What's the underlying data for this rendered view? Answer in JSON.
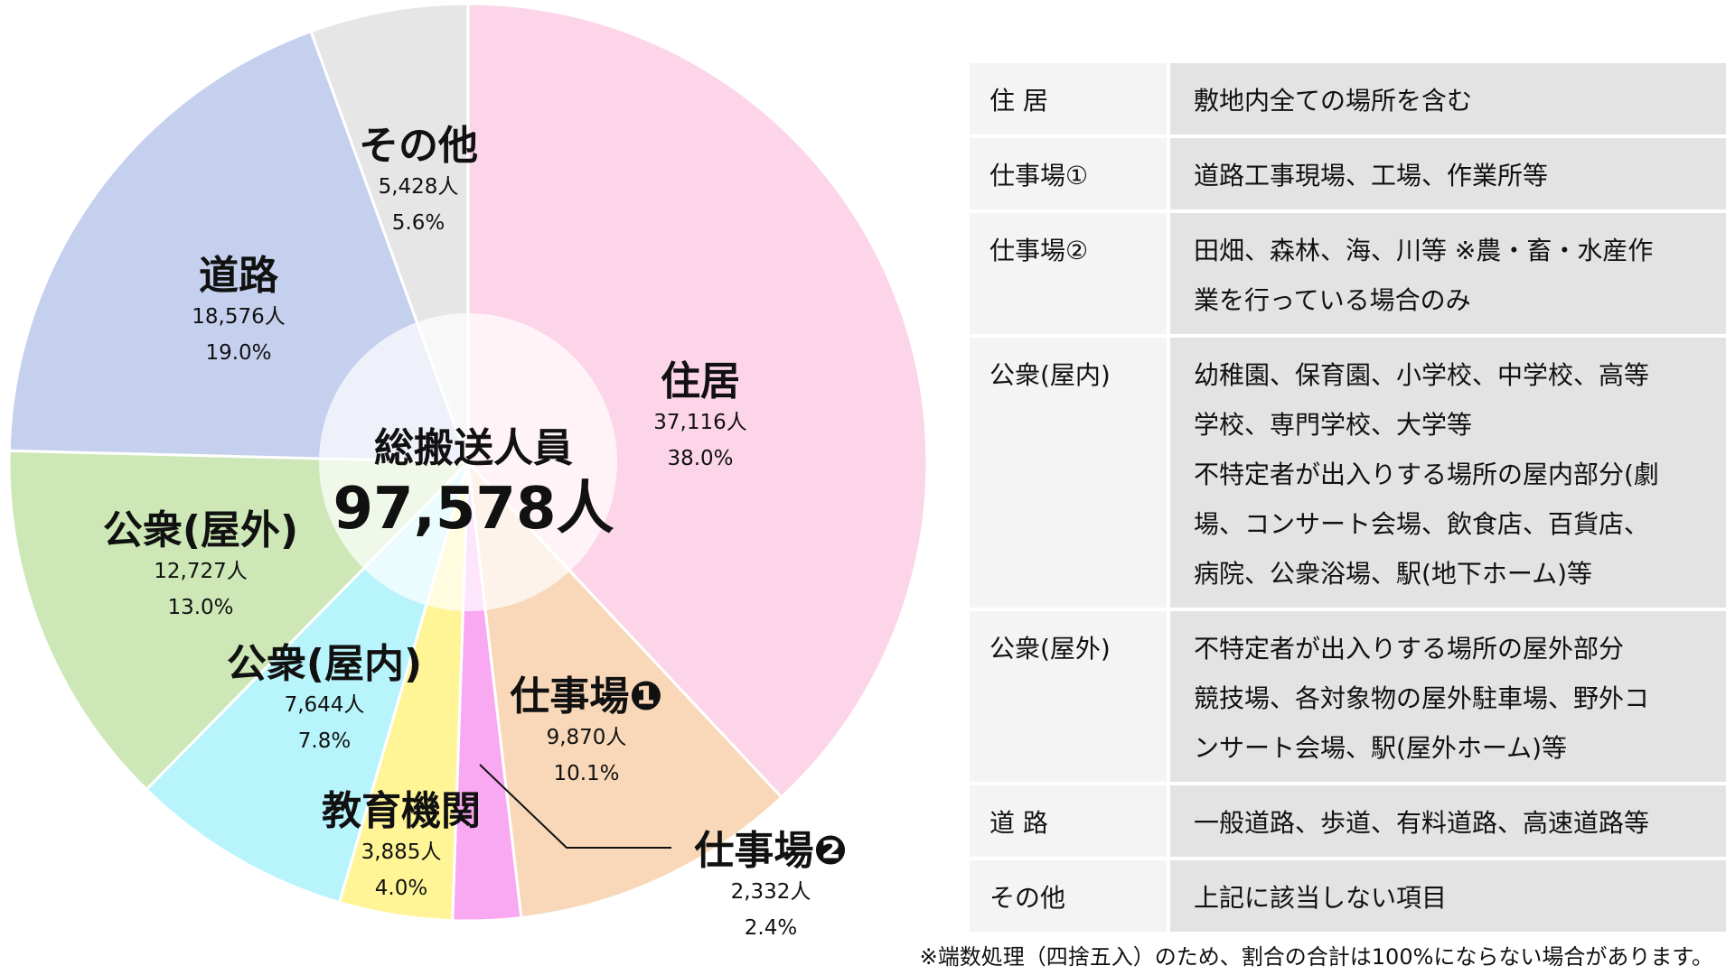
{
  "chart_data": {
    "type": "pie",
    "variant": "donut-overlay",
    "center_label": "総搬送人員",
    "center_value": "97,578人",
    "start": "top",
    "direction": "clockwise",
    "slices": [
      {
        "label": "住居",
        "count_text": "37,116人",
        "value": 37116,
        "percent": "38.0%",
        "color": "#fdd5e8"
      },
      {
        "label": "仕事場❶",
        "count_text": "9,870人",
        "value": 9870,
        "percent": "10.1%",
        "color": "#f8d8b8"
      },
      {
        "label": "仕事場❷",
        "count_text": "2,332人",
        "value": 2332,
        "percent": "2.4%",
        "color": "#f9a8f2"
      },
      {
        "label": "教育機関",
        "count_text": "3,885人",
        "value": 3885,
        "percent": "4.0%",
        "color": "#fff597"
      },
      {
        "label": "公衆(屋内)",
        "count_text": "7,644人",
        "value": 7644,
        "percent": "7.8%",
        "color": "#b8f4fc"
      },
      {
        "label": "公衆(屋外)",
        "count_text": "12,727人",
        "value": 12727,
        "percent": "13.0%",
        "color": "#cde8b6"
      },
      {
        "label": "道路",
        "count_text": "18,576人",
        "value": 18576,
        "percent": "19.0%",
        "color": "#c5d0ef"
      },
      {
        "label": "その他",
        "count_text": "5,428人",
        "value": 5428,
        "percent": "5.6%",
        "color": "#e6e6e6"
      }
    ]
  },
  "legend_table": [
    {
      "key": "住 居",
      "lines": [
        "敷地内全ての場所を含む"
      ]
    },
    {
      "key": "仕事場①",
      "lines": [
        "道路工事現場、工場、作業所等"
      ]
    },
    {
      "key": "仕事場②",
      "lines": [
        "田畑、森林、海、川等 ※農・畜・水産作",
        "業を行っている場合のみ"
      ]
    },
    {
      "key": "公衆(屋内)",
      "lines": [
        "幼稚園、保育園、小学校、中学校、高等",
        "学校、専門学校、大学等",
        "不特定者が出入りする場所の屋内部分(劇",
        "場、コンサート会場、飲食店、百貨店、",
        "病院、公衆浴場、駅(地下ホーム)等"
      ]
    },
    {
      "key": "公衆(屋外)",
      "lines": [
        "不特定者が出入りする場所の屋外部分",
        "競技場、各対象物の屋外駐車場、野外コ",
        "ンサート会場、駅(屋外ホーム)等"
      ]
    },
    {
      "key": "道 路",
      "lines": [
        "一般道路、歩道、有料道路、高速道路等"
      ]
    },
    {
      "key": "その他",
      "lines": [
        "上記に該当しない項目"
      ]
    }
  ],
  "footnote": "※端数処理（四捨五入）のため、割合の合計は100%にならない場合があります。"
}
